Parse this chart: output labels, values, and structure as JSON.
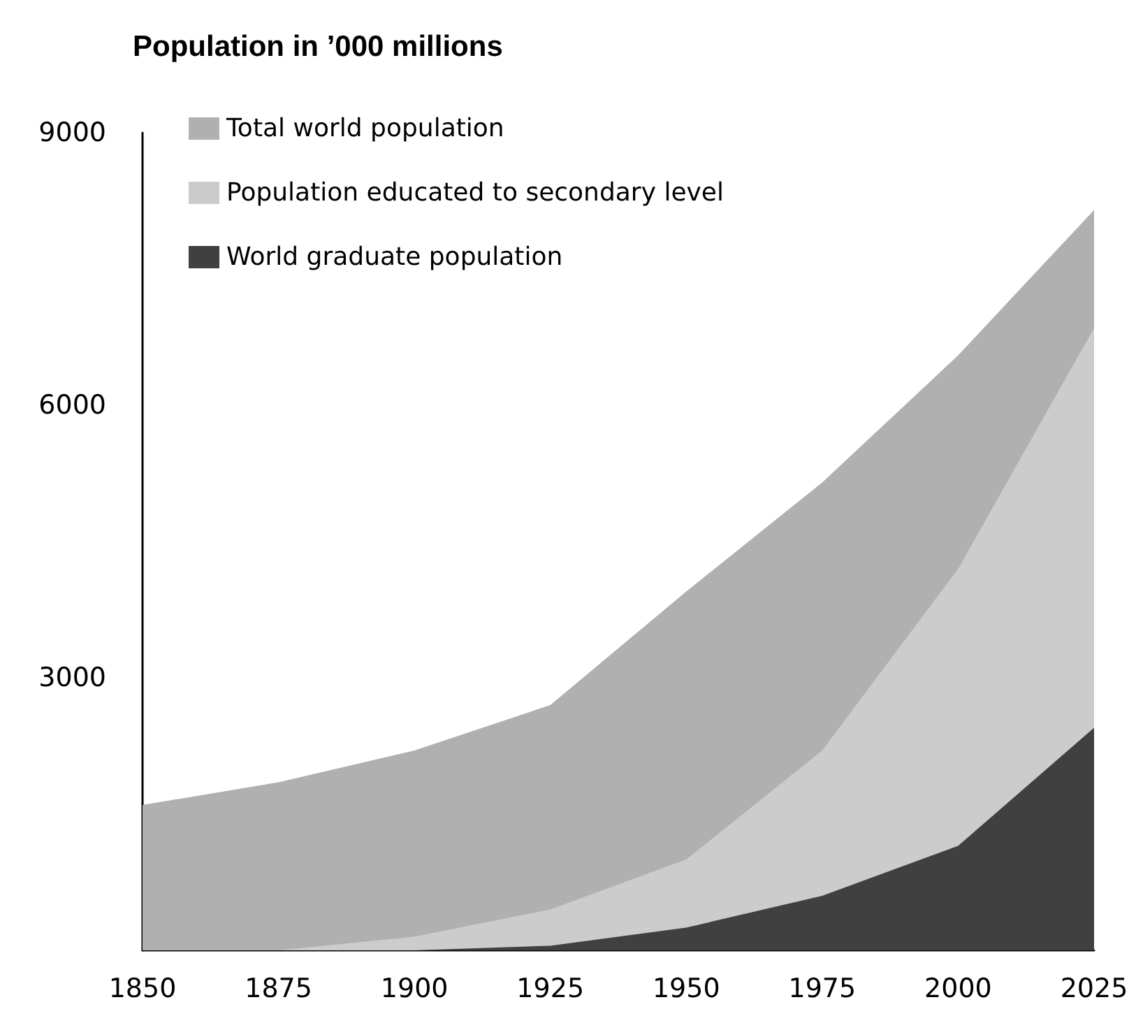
{
  "chart_data": {
    "type": "area",
    "title": "Population in ’000 millions",
    "x": [
      1850,
      1875,
      1900,
      1925,
      1950,
      1975,
      2000,
      2025
    ],
    "xlim": [
      1850,
      2025
    ],
    "xticks": [
      1850,
      1875,
      1900,
      1925,
      1950,
      1975,
      2000,
      2025
    ],
    "ylim": [
      0,
      9000
    ],
    "yticks": [
      3000,
      6000,
      9000
    ],
    "grid": false,
    "legend": "top left",
    "series": [
      {
        "name": "Total world population",
        "color": "#b0b0b0",
        "values": [
          1600,
          1850,
          2200,
          2700,
          3950,
          5150,
          6550,
          8150
        ]
      },
      {
        "name": "Population educated to secondary level",
        "color": "#cccccc",
        "values": [
          0,
          0,
          150,
          450,
          1000,
          2200,
          4200,
          6850
        ]
      },
      {
        "name": "World graduate population",
        "color": "#404040",
        "values": [
          0,
          0,
          0,
          50,
          250,
          600,
          1150,
          2450
        ]
      }
    ]
  }
}
